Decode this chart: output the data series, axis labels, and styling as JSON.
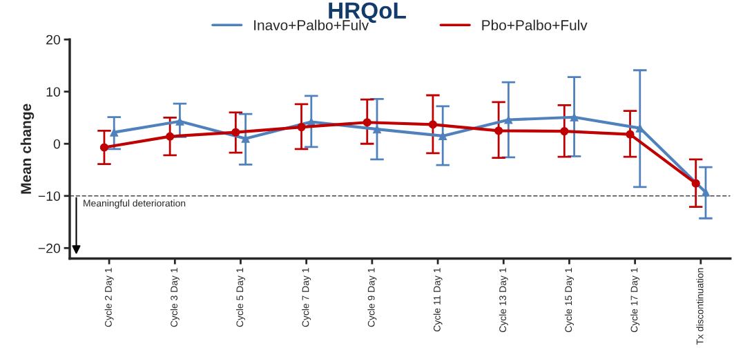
{
  "chart_data": {
    "type": "line",
    "title": "HRQoL",
    "ylabel": "Mean change",
    "categories": [
      "Cycle 2 Day 1",
      "Cycle 3 Day 1",
      "Cycle 5 Day 1",
      "Cycle 7 Day 1",
      "Cycle 9 Day 1",
      "Cycle 11 Day 1",
      "Cycle 13 Day 1",
      "Cycle 15 Day 1",
      "Cycle 17 Day 1",
      "Tx discontinuation"
    ],
    "series": [
      {
        "name": "Inavo+Palbo+Fulv",
        "color": "#4f81bd",
        "marker": "triangle",
        "values": [
          2.2,
          4.3,
          1.0,
          4.2,
          2.8,
          1.5,
          4.6,
          5.1,
          3.0,
          -9.3
        ],
        "errors": [
          [
            -1.0,
            5.1
          ],
          [
            1.3,
            7.7
          ],
          [
            -4.0,
            5.7
          ],
          [
            -0.6,
            9.2
          ],
          [
            -3.0,
            8.6
          ],
          [
            -4.1,
            7.2
          ],
          [
            -2.6,
            11.8
          ],
          [
            -2.4,
            12.8
          ],
          [
            -8.3,
            14.1
          ],
          [
            -14.3,
            -4.5
          ]
        ]
      },
      {
        "name": "Pbo+Palbo+Fulv",
        "color": "#c00000",
        "marker": "circle",
        "values": [
          -0.7,
          1.4,
          2.2,
          3.2,
          4.1,
          3.7,
          2.5,
          2.4,
          1.8,
          -7.6
        ],
        "errors": [
          [
            -3.9,
            2.5
          ],
          [
            -2.2,
            5.0
          ],
          [
            -1.7,
            6.0
          ],
          [
            -1.0,
            7.6
          ],
          [
            0.0,
            8.5
          ],
          [
            -1.8,
            9.3
          ],
          [
            -2.7,
            8.0
          ],
          [
            -2.5,
            7.4
          ],
          [
            -2.5,
            6.3
          ],
          [
            -12.1,
            -3.0
          ]
        ]
      }
    ],
    "ylim": [
      -22,
      20
    ],
    "yticks": [
      {
        "value": -20,
        "label": "−20"
      },
      {
        "value": -10,
        "label": "−10"
      },
      0,
      10,
      20
    ],
    "ref_lines": [
      {
        "axis": "y",
        "value": -10,
        "label": "Meaningful deterioration",
        "color": "#444444",
        "line_style": "dashed"
      }
    ],
    "legend": "top",
    "grid": false,
    "line_style": "solid"
  }
}
